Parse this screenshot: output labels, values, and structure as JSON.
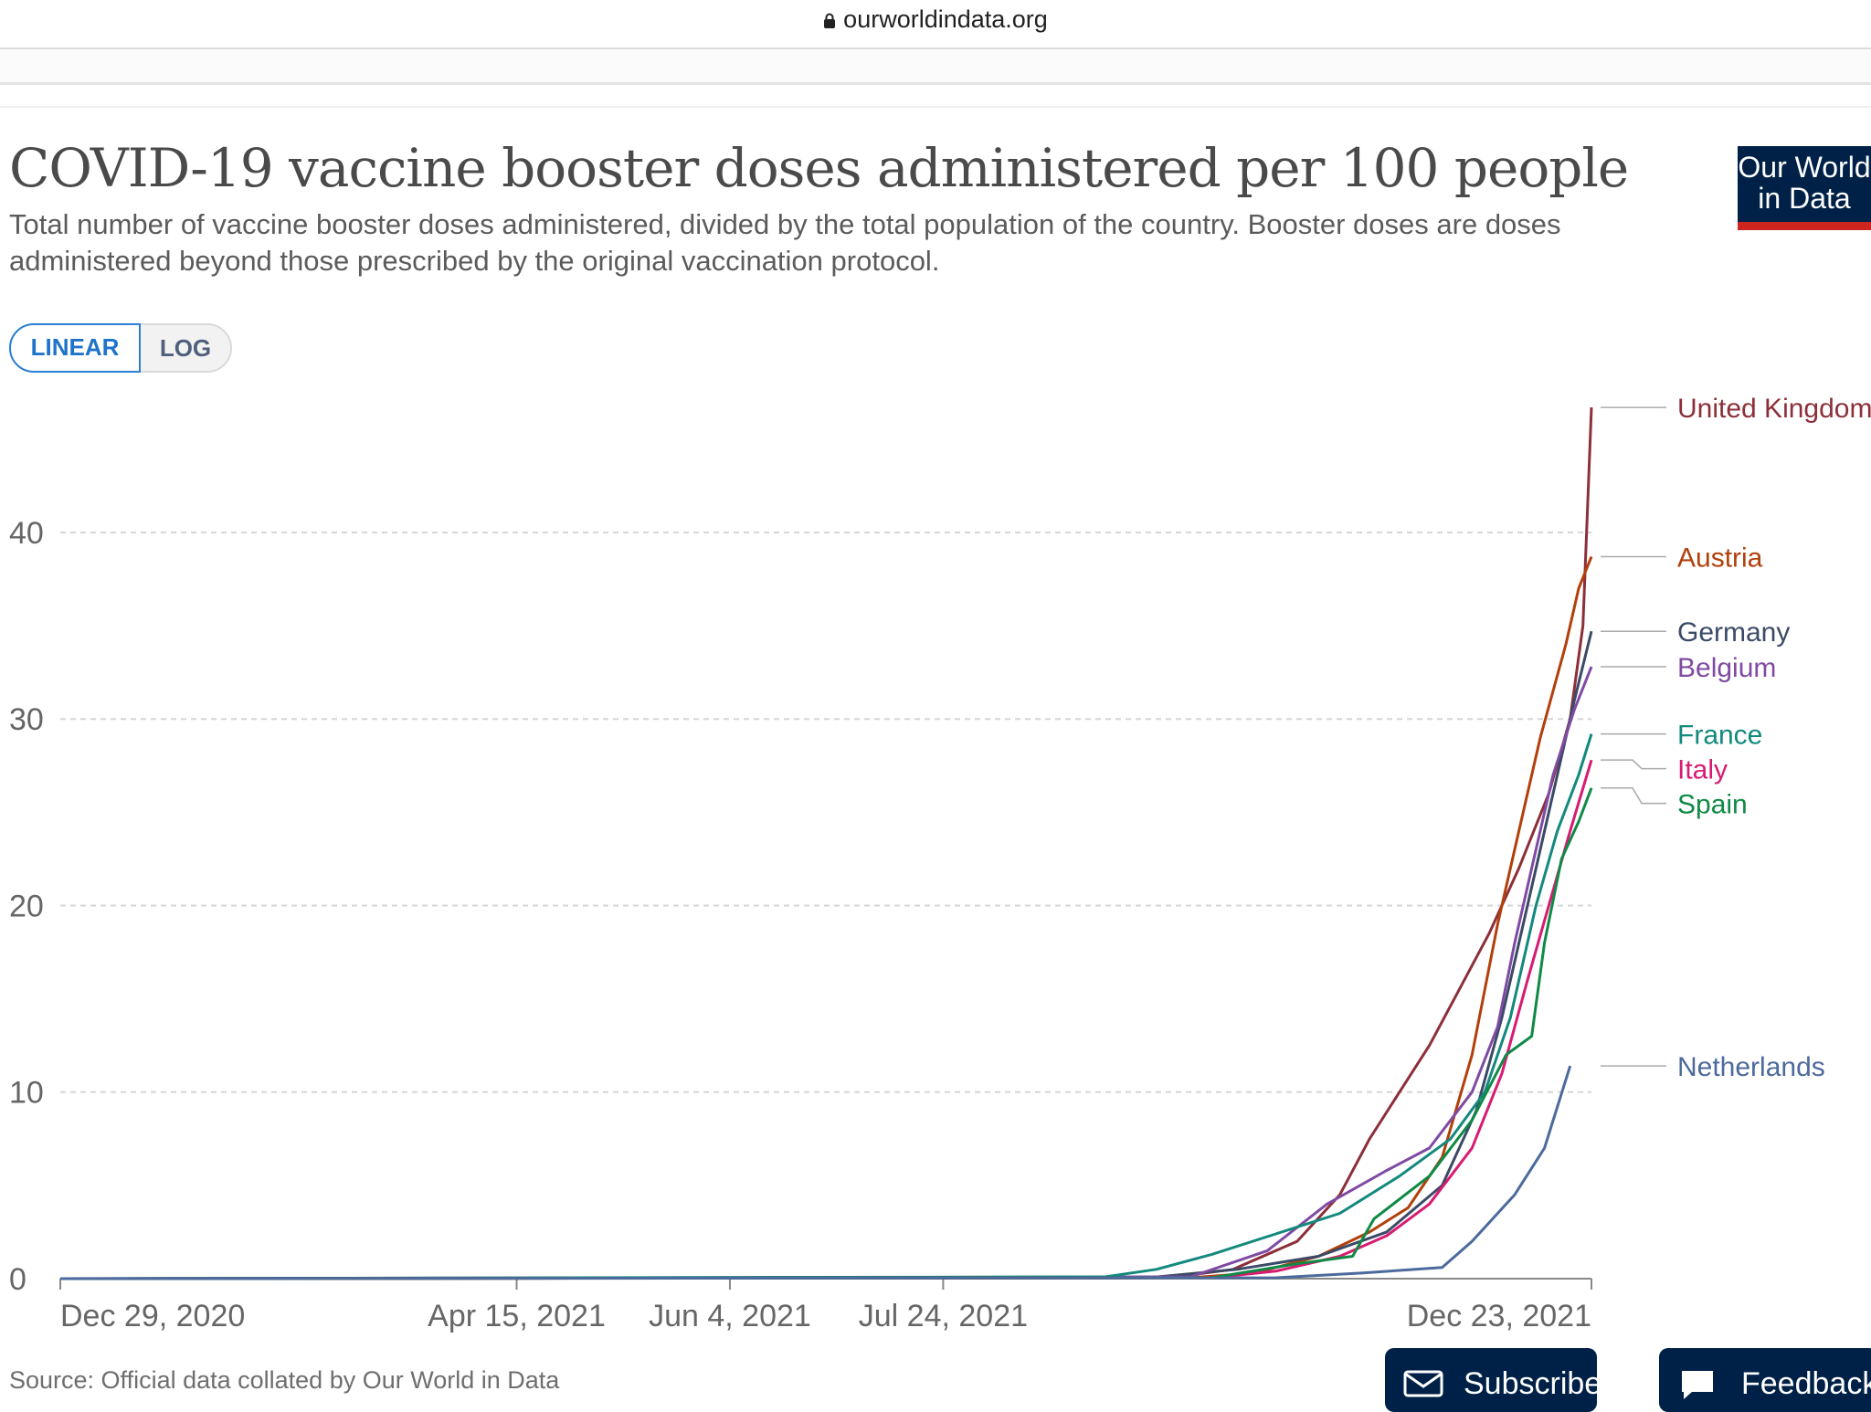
{
  "browser": {
    "url": "ourworldindata.org"
  },
  "header": {
    "title": "COVID-19 vaccine booster doses administered per 100 people",
    "subtitle": "Total number of vaccine booster doses administered, divided by the total population of the country. Booster doses are doses administered beyond those prescribed by the original vaccination protocol.",
    "logo_text": "Our World\nin Data"
  },
  "controls": {
    "linear_label": "LINEAR",
    "log_label": "LOG",
    "active_scale": "linear"
  },
  "footer": {
    "source": "Source: Official data collated by Our World in Data",
    "subscribe_label": "Subscribe",
    "feedback_label": "Feedback"
  },
  "colors": {
    "united_kingdom": "#8c2f39",
    "austria": "#b2400b",
    "germany": "#3b4a66",
    "belgium": "#7f4aa3",
    "france": "#13897e",
    "italy": "#d81b72",
    "spain": "#0f8a46",
    "netherlands": "#4c6a9c",
    "logo_bg": "#002147",
    "logo_accent": "#ce261e",
    "toggle_active": "#2b7fd6"
  },
  "chart_data": {
    "type": "line",
    "title": "COVID-19 vaccine booster doses administered per 100 people",
    "xlabel": "",
    "ylabel": "",
    "y_scale": "linear",
    "ylim": [
      0,
      47
    ],
    "xlim": [
      "2020-12-29",
      "2021-12-23"
    ],
    "x_ticks": [
      "Dec 29, 2020",
      "Apr 15, 2021",
      "Jun 4, 2021",
      "Jul 24, 2021",
      "Dec 23, 2021"
    ],
    "y_ticks": [
      0,
      10,
      20,
      30,
      40
    ],
    "grid": true,
    "legend": "line-end labels",
    "series": [
      {
        "name": "United Kingdom",
        "color_key": "united_kingdom",
        "points": [
          [
            "2020-12-29",
            0
          ],
          [
            "2021-09-15",
            0.05
          ],
          [
            "2021-09-30",
            0.5
          ],
          [
            "2021-10-15",
            2
          ],
          [
            "2021-10-25",
            4.5
          ],
          [
            "2021-11-01",
            7.5
          ],
          [
            "2021-11-08",
            10
          ],
          [
            "2021-11-15",
            12.5
          ],
          [
            "2021-11-22",
            15.5
          ],
          [
            "2021-11-29",
            18.5
          ],
          [
            "2021-12-06",
            22
          ],
          [
            "2021-12-13",
            26
          ],
          [
            "2021-12-18",
            30
          ],
          [
            "2021-12-21",
            35
          ],
          [
            "2021-12-23",
            46.7
          ]
        ]
      },
      {
        "name": "Austria",
        "color_key": "austria",
        "points": [
          [
            "2020-12-29",
            0
          ],
          [
            "2021-09-20",
            0.05
          ],
          [
            "2021-10-05",
            0.3
          ],
          [
            "2021-10-20",
            1.2
          ],
          [
            "2021-11-01",
            2.5
          ],
          [
            "2021-11-10",
            3.8
          ],
          [
            "2021-11-18",
            6.5
          ],
          [
            "2021-11-25",
            12
          ],
          [
            "2021-12-01",
            19
          ],
          [
            "2021-12-06",
            24
          ],
          [
            "2021-12-11",
            29
          ],
          [
            "2021-12-17",
            34
          ],
          [
            "2021-12-20",
            37
          ],
          [
            "2021-12-23",
            38.7
          ]
        ]
      },
      {
        "name": "Germany",
        "color_key": "germany",
        "points": [
          [
            "2020-12-29",
            0
          ],
          [
            "2021-09-10",
            0.05
          ],
          [
            "2021-10-01",
            0.5
          ],
          [
            "2021-10-20",
            1.2
          ],
          [
            "2021-11-05",
            2.5
          ],
          [
            "2021-11-18",
            5
          ],
          [
            "2021-11-26",
            9
          ],
          [
            "2021-12-02",
            14
          ],
          [
            "2021-12-08",
            20
          ],
          [
            "2021-12-14",
            26
          ],
          [
            "2021-12-19",
            31
          ],
          [
            "2021-12-23",
            34.7
          ]
        ]
      },
      {
        "name": "Belgium",
        "color_key": "belgium",
        "points": [
          [
            "2020-12-29",
            0
          ],
          [
            "2021-09-20",
            0.1
          ],
          [
            "2021-10-08",
            1.5
          ],
          [
            "2021-10-22",
            4
          ],
          [
            "2021-11-05",
            5.8
          ],
          [
            "2021-11-15",
            7
          ],
          [
            "2021-11-25",
            10
          ],
          [
            "2021-12-01",
            13.5
          ],
          [
            "2021-12-05",
            18
          ],
          [
            "2021-12-09",
            22
          ],
          [
            "2021-12-14",
            27
          ],
          [
            "2021-12-19",
            30.5
          ],
          [
            "2021-12-23",
            32.8
          ]
        ]
      },
      {
        "name": "France",
        "color_key": "france",
        "points": [
          [
            "2020-12-29",
            0
          ],
          [
            "2021-08-31",
            0.1
          ],
          [
            "2021-09-12",
            0.5
          ],
          [
            "2021-09-25",
            1.3
          ],
          [
            "2021-10-10",
            2.4
          ],
          [
            "2021-10-25",
            3.5
          ],
          [
            "2021-11-08",
            5.5
          ],
          [
            "2021-11-20",
            7.5
          ],
          [
            "2021-11-28",
            10
          ],
          [
            "2021-12-04",
            14
          ],
          [
            "2021-12-10",
            20
          ],
          [
            "2021-12-15",
            24
          ],
          [
            "2021-12-20",
            27
          ],
          [
            "2021-12-23",
            29.2
          ]
        ]
      },
      {
        "name": "Italy",
        "color_key": "italy",
        "points": [
          [
            "2020-12-29",
            0
          ],
          [
            "2021-09-25",
            0.05
          ],
          [
            "2021-10-10",
            0.4
          ],
          [
            "2021-10-25",
            1.2
          ],
          [
            "2021-11-05",
            2.3
          ],
          [
            "2021-11-15",
            4
          ],
          [
            "2021-11-25",
            7
          ],
          [
            "2021-12-02",
            11
          ],
          [
            "2021-12-08",
            16
          ],
          [
            "2021-12-13",
            20
          ],
          [
            "2021-12-18",
            24
          ],
          [
            "2021-12-23",
            27.8
          ]
        ]
      },
      {
        "name": "Spain",
        "color_key": "spain",
        "points": [
          [
            "2020-12-29",
            0
          ],
          [
            "2021-09-25",
            0.05
          ],
          [
            "2021-10-15",
            0.8
          ],
          [
            "2021-10-28",
            1.2
          ],
          [
            "2021-11-02",
            3.2
          ],
          [
            "2021-11-15",
            5.5
          ],
          [
            "2021-11-25",
            8.5
          ],
          [
            "2021-12-03",
            12
          ],
          [
            "2021-12-09",
            13
          ],
          [
            "2021-12-12",
            18
          ],
          [
            "2021-12-16",
            22.5
          ],
          [
            "2021-12-20",
            24.5
          ],
          [
            "2021-12-23",
            26.3
          ]
        ]
      },
      {
        "name": "Netherlands",
        "color_key": "netherlands",
        "points": [
          [
            "2020-12-29",
            0
          ],
          [
            "2021-10-10",
            0.05
          ],
          [
            "2021-10-30",
            0.3
          ],
          [
            "2021-11-18",
            0.6
          ],
          [
            "2021-11-25",
            2
          ],
          [
            "2021-12-05",
            4.5
          ],
          [
            "2021-12-12",
            7
          ],
          [
            "2021-12-18",
            11.4
          ]
        ]
      }
    ]
  }
}
